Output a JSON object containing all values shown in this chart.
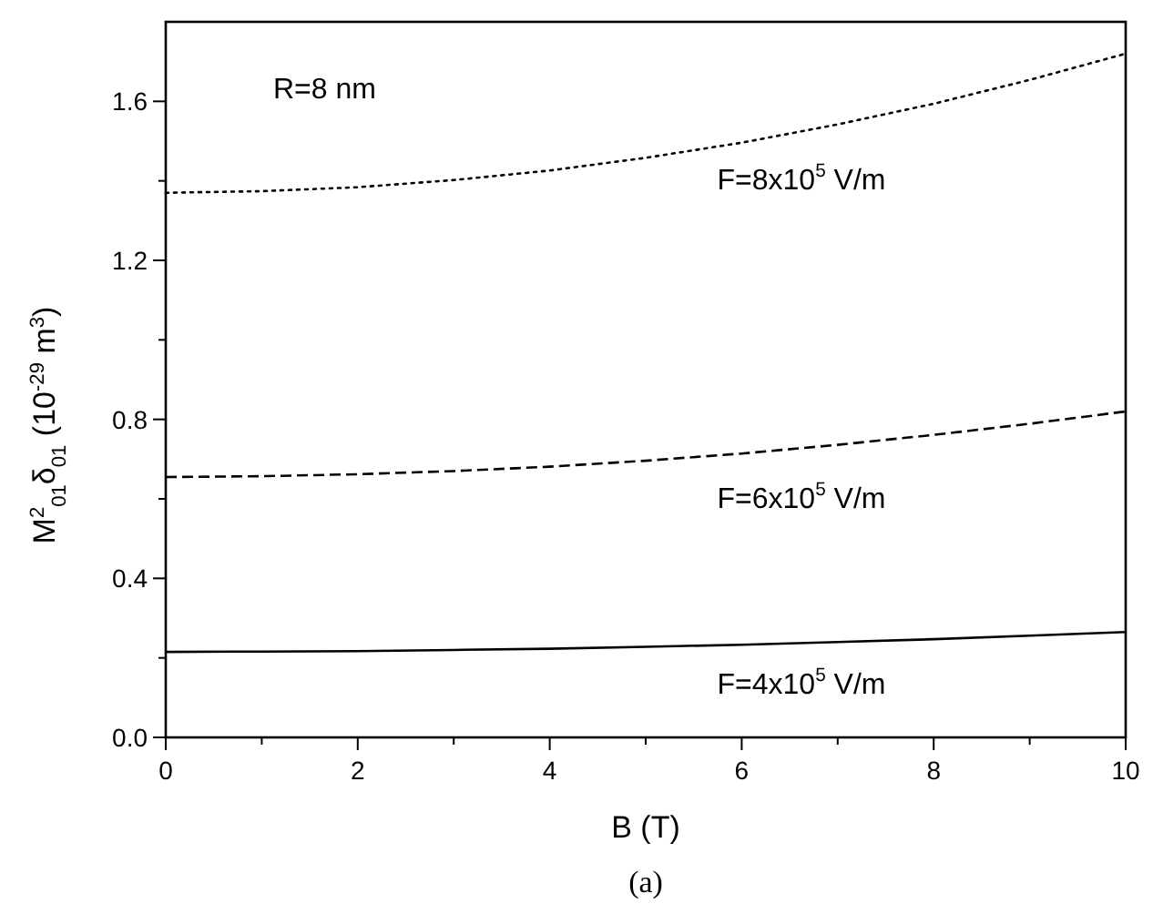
{
  "chart_data": {
    "type": "line",
    "xlabel": "B (T)",
    "ylabel": "M$^{2}$$_{01}$δ$_{01}$  (10$^{-29}$ m$^{3}$)",
    "x": [
      0,
      1,
      2,
      3,
      4,
      5,
      6,
      7,
      8,
      9,
      10
    ],
    "series": [
      {
        "color": "#000000",
        "line_style": "dotted",
        "values": [
          1.37,
          1.374,
          1.384,
          1.402,
          1.426,
          1.458,
          1.496,
          1.542,
          1.594,
          1.654,
          1.72
        ]
      },
      {
        "color": "#000000",
        "line_style": "dashed",
        "values": [
          0.655,
          0.657,
          0.662,
          0.67,
          0.681,
          0.696,
          0.714,
          0.736,
          0.761,
          0.789,
          0.82
        ]
      },
      {
        "color": "#000000",
        "line_style": "solid",
        "values": [
          0.215,
          0.216,
          0.217,
          0.22,
          0.223,
          0.228,
          0.233,
          0.24,
          0.247,
          0.256,
          0.265
        ]
      }
    ],
    "xlim": [
      0,
      10
    ],
    "ylim": [
      0,
      1.8
    ],
    "xticks": [
      0,
      {
        "value": 1,
        "label": null
      },
      2,
      {
        "value": 3,
        "label": null
      },
      4,
      {
        "value": 5,
        "label": null
      },
      6,
      {
        "value": 7,
        "label": null
      },
      8,
      {
        "value": 9,
        "label": null
      },
      10
    ],
    "yticks": [
      "0.0",
      {
        "value": 0.2,
        "label": null
      },
      {
        "value": 0.4,
        "label": "0.4"
      },
      {
        "value": 0.6,
        "label": null
      },
      {
        "value": 0.8,
        "label": "0.8"
      },
      {
        "value": 1.0,
        "label": null
      },
      {
        "value": 1.2,
        "label": "1.2"
      },
      {
        "value": 1.4,
        "label": null
      },
      {
        "value": 1.6,
        "label": "1.6"
      }
    ],
    "annotations": [
      "R=8 nm",
      "F=8x10$^{5}$ V/m",
      "F=6x10$^{5}$ V/m",
      "F=4x10$^{5}$ V/m",
      "(a)"
    ],
    "grid": false,
    "marker": "none"
  }
}
